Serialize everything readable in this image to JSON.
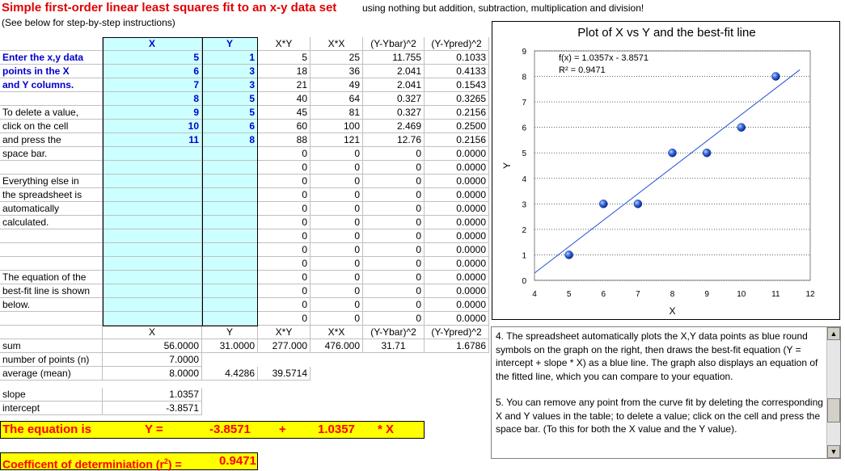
{
  "title": "Simple first-order linear least squares fit to an x-y data set",
  "subtitle": "using nothing but addition, subtraction, multiplication and division!",
  "note": "(See below for step-by-step instructions)",
  "headers": {
    "x": "X",
    "y": "Y",
    "xy": "X*Y",
    "xx": "X*X",
    "ybar": "(Y-Ybar)^2",
    "ypred": "(Y-Ypred)^2"
  },
  "instructions": {
    "l1": "Enter the x,y data",
    "l2": "points in the X",
    "l3": "and Y columns.",
    "l4": "To delete a value,",
    "l5": "click on the cell",
    "l6": "and press the",
    "l7": "space bar.",
    "l8": "Everything else in",
    "l9": "the spreadsheet is",
    "l10": "automatically",
    "l11": "calculated.",
    "l12": "The equation of the",
    "l13": "best-fit line is shown",
    "l14": "below."
  },
  "rows": [
    {
      "x": "5",
      "y": "1",
      "xy": "5",
      "xx": "25",
      "ybar": "11.755",
      "ypred": "0.1033"
    },
    {
      "x": "6",
      "y": "3",
      "xy": "18",
      "xx": "36",
      "ybar": "2.041",
      "ypred": "0.4133"
    },
    {
      "x": "7",
      "y": "3",
      "xy": "21",
      "xx": "49",
      "ybar": "2.041",
      "ypred": "0.1543"
    },
    {
      "x": "8",
      "y": "5",
      "xy": "40",
      "xx": "64",
      "ybar": "0.327",
      "ypred": "0.3265"
    },
    {
      "x": "9",
      "y": "5",
      "xy": "45",
      "xx": "81",
      "ybar": "0.327",
      "ypred": "0.2156"
    },
    {
      "x": "10",
      "y": "6",
      "xy": "60",
      "xx": "100",
      "ybar": "2.469",
      "ypred": "0.2500"
    },
    {
      "x": "11",
      "y": "8",
      "xy": "88",
      "xx": "121",
      "ybar": "12.76",
      "ypred": "0.2156"
    },
    {
      "x": "",
      "y": "",
      "xy": "0",
      "xx": "0",
      "ybar": "0",
      "ypred": "0.0000"
    },
    {
      "x": "",
      "y": "",
      "xy": "0",
      "xx": "0",
      "ybar": "0",
      "ypred": "0.0000"
    },
    {
      "x": "",
      "y": "",
      "xy": "0",
      "xx": "0",
      "ybar": "0",
      "ypred": "0.0000"
    },
    {
      "x": "",
      "y": "",
      "xy": "0",
      "xx": "0",
      "ybar": "0",
      "ypred": "0.0000"
    },
    {
      "x": "",
      "y": "",
      "xy": "0",
      "xx": "0",
      "ybar": "0",
      "ypred": "0.0000"
    },
    {
      "x": "",
      "y": "",
      "xy": "0",
      "xx": "0",
      "ybar": "0",
      "ypred": "0.0000"
    },
    {
      "x": "",
      "y": "",
      "xy": "0",
      "xx": "0",
      "ybar": "0",
      "ypred": "0.0000"
    },
    {
      "x": "",
      "y": "",
      "xy": "0",
      "xx": "0",
      "ybar": "0",
      "ypred": "0.0000"
    },
    {
      "x": "",
      "y": "",
      "xy": "0",
      "xx": "0",
      "ybar": "0",
      "ypred": "0.0000"
    },
    {
      "x": "",
      "y": "",
      "xy": "0",
      "xx": "0",
      "ybar": "0",
      "ypred": "0.0000"
    },
    {
      "x": "",
      "y": "",
      "xy": "0",
      "xx": "0",
      "ybar": "0",
      "ypred": "0.0000"
    },
    {
      "x": "",
      "y": "",
      "xy": "0",
      "xx": "0",
      "ybar": "0",
      "ypred": "0.0000"
    },
    {
      "x": "",
      "y": "",
      "xy": "0",
      "xx": "0",
      "ybar": "0",
      "ypred": "0.0000"
    }
  ],
  "summary": {
    "sum_label": "sum",
    "sum_x": "56.0000",
    "sum_y": "31.0000",
    "sum_xy": "277.000",
    "sum_xx": "476.000",
    "sum_ybar": "31.71",
    "sum_ypred": "1.6786",
    "n_label": "number of points (n)",
    "n_val": "7.0000",
    "avg_label": "average (mean)",
    "avg_x": "8.0000",
    "avg_y": "4.4286",
    "avg_xy": "39.5714",
    "slope_label": "slope",
    "slope_val": "1.0357",
    "intercept_label": "intercept",
    "intercept_val": "-3.8571"
  },
  "equation": {
    "label": "The equation is",
    "y": "Y =",
    "intercept": "-3.8571",
    "plus": "+",
    "slope": "1.0357",
    "times": "* X"
  },
  "r2": {
    "label": "Coefficent of determiniation (r",
    "sup": "2",
    "label_end": ") =",
    "value": "0.9471"
  },
  "chart_data": {
    "type": "scatter",
    "title": "Plot of X vs Y and the best-fit line",
    "xlabel": "X",
    "ylabel": "Y",
    "xlim": [
      4,
      12
    ],
    "ylim": [
      0,
      9
    ],
    "x_ticks": [
      "4",
      "5",
      "6",
      "7",
      "8",
      "9",
      "10",
      "11",
      "12"
    ],
    "y_ticks": [
      "0",
      "1",
      "2",
      "3",
      "4",
      "5",
      "6",
      "7",
      "8",
      "9"
    ],
    "grid": true,
    "points": [
      [
        5,
        1
      ],
      [
        6,
        3
      ],
      [
        7,
        3
      ],
      [
        8,
        5
      ],
      [
        9,
        5
      ],
      [
        10,
        6
      ],
      [
        11,
        8
      ]
    ],
    "fit": {
      "slope": 1.0357,
      "intercept": -3.8571
    },
    "fx_label": "f(x) = 1.0357x - 3.8571",
    "r2_label": "R² = 0.9471",
    "point_color": "#1f4fd8",
    "line_color": "#1f4fd8"
  },
  "textpanel": {
    "p1": "4. The spreadsheet automatically plots the X,Y data points as blue round symbols on the graph on the right, then draws the best-fit equation (Y = intercept + slope * X) as a blue line.  The graph also displays an equation of the fitted line, which you can compare to your equation.",
    "p2": "5. You can remove any point from the curve fit by deleting the corresponding X and Y values in the table; to delete a value; click on the cell and press the space bar. (To this for both the X value and the Y value)."
  }
}
